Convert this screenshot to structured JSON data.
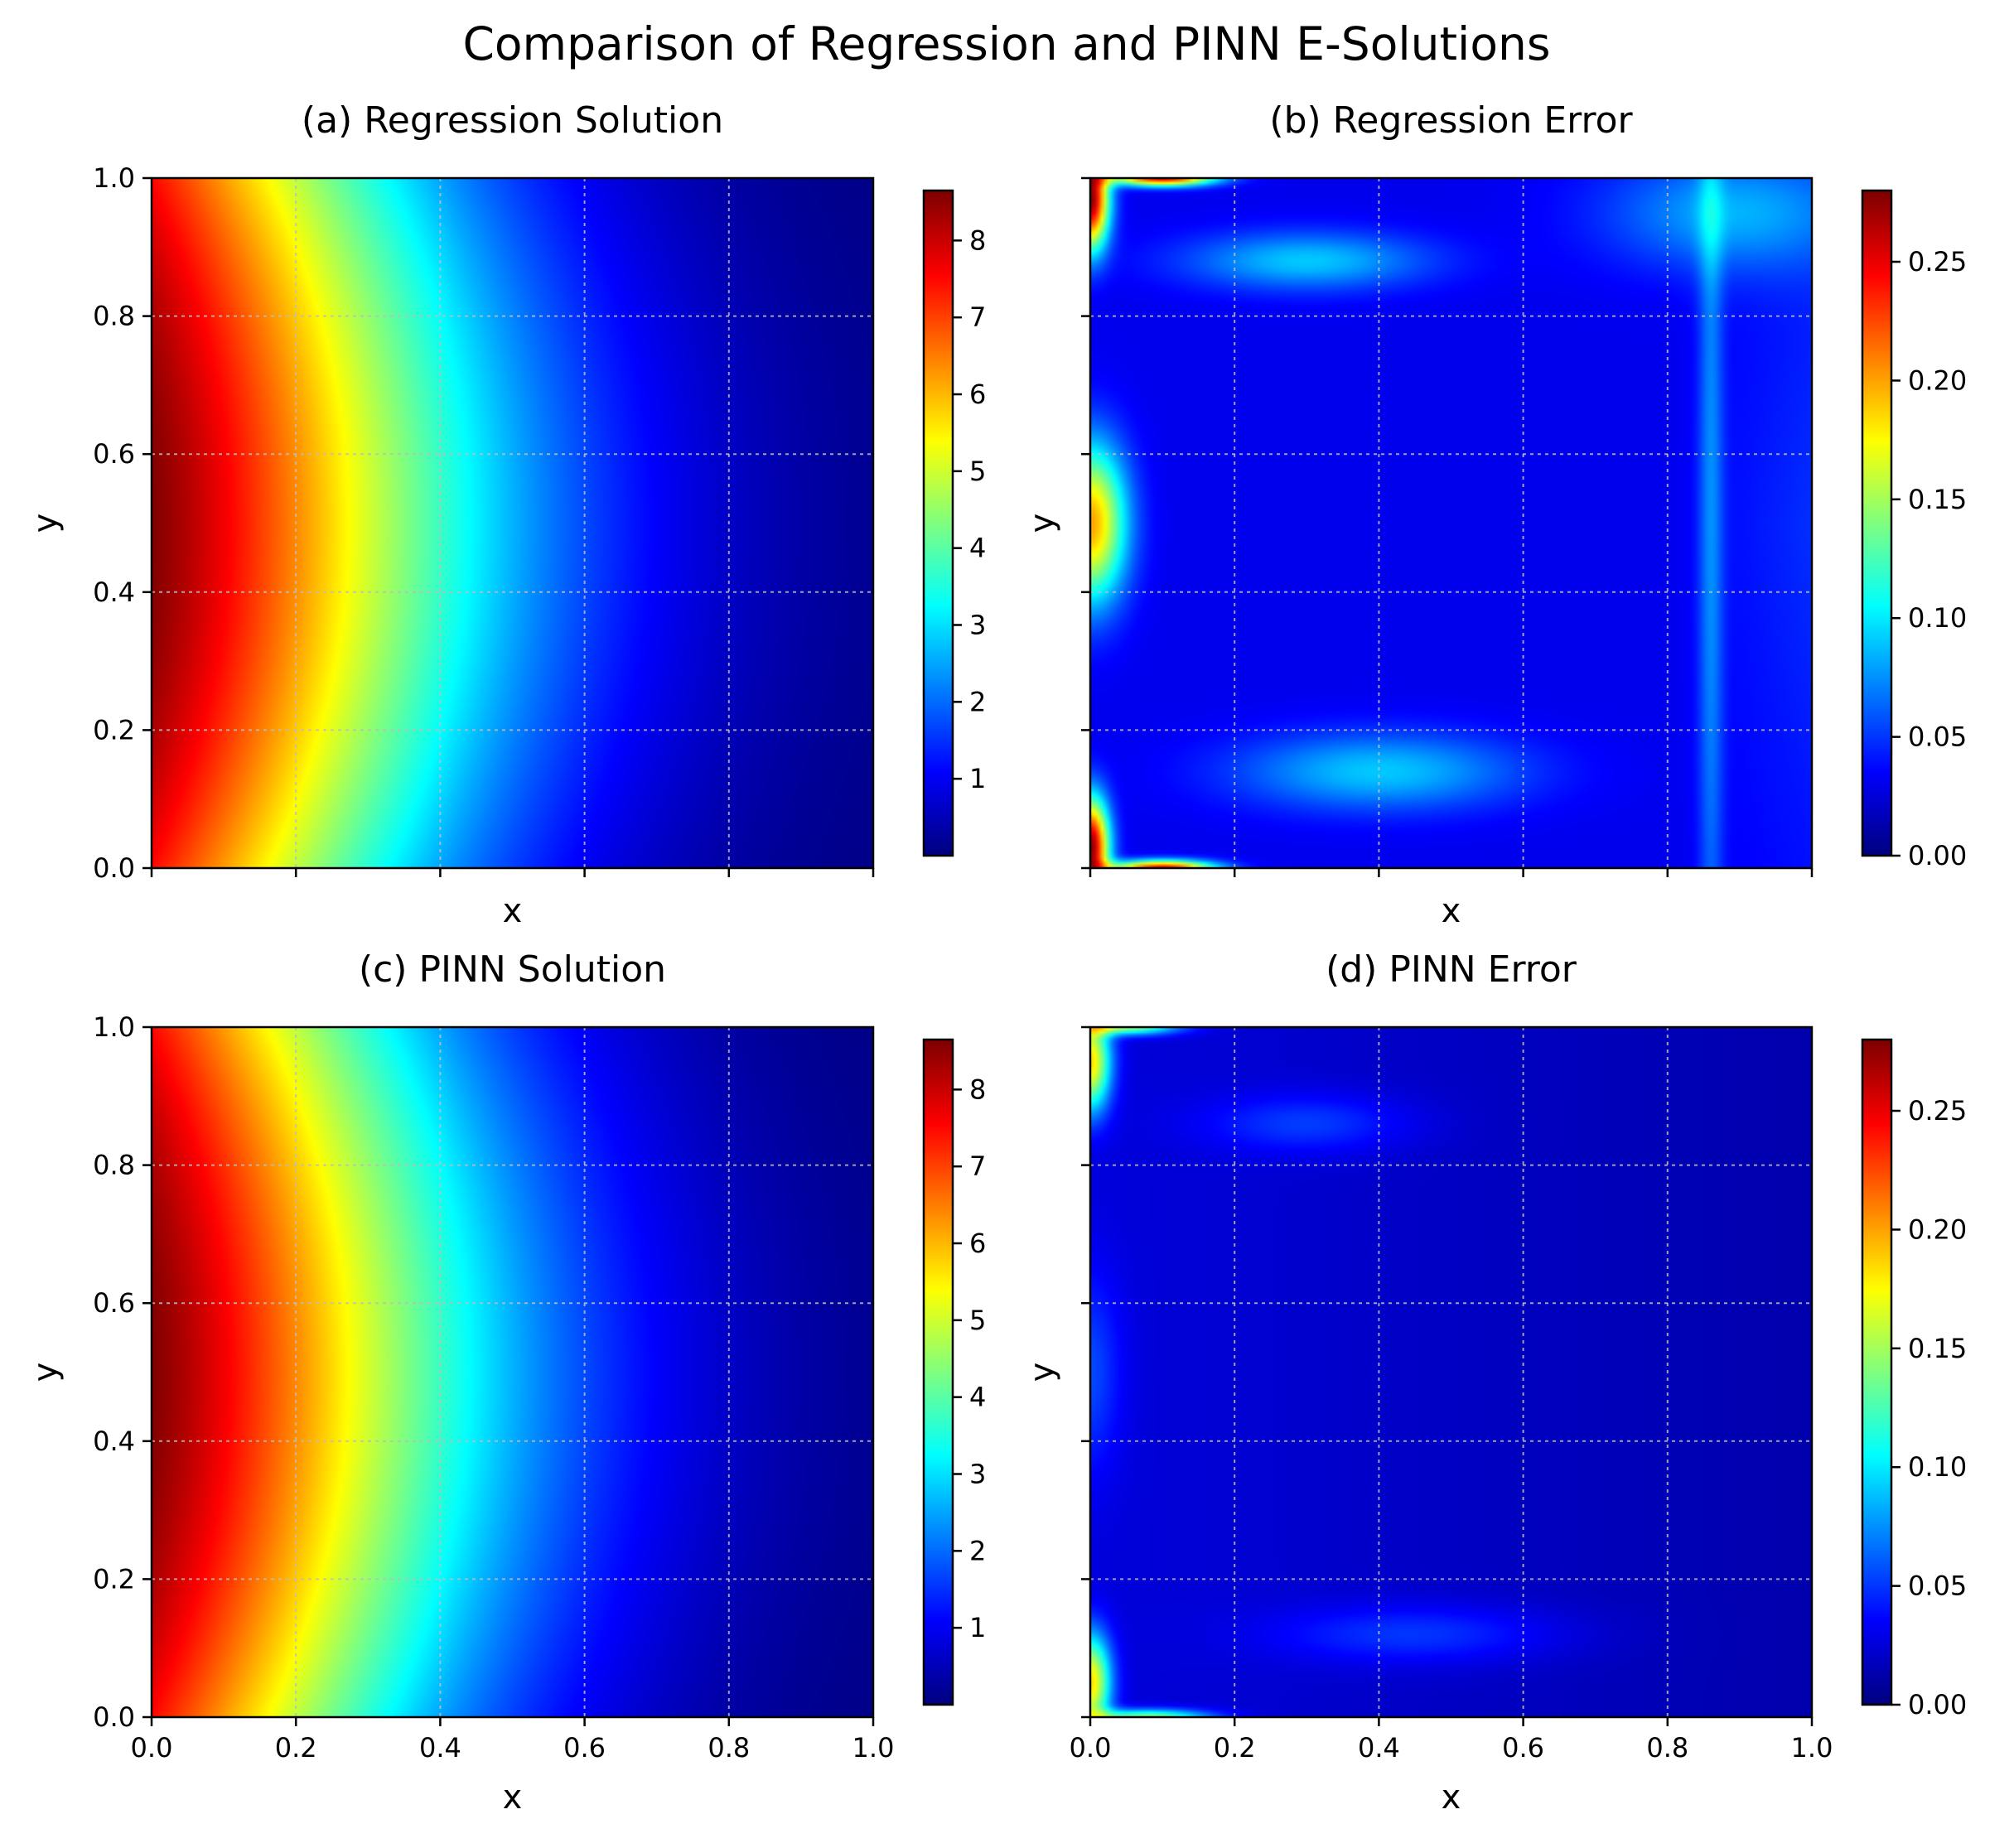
{
  "figure": {
    "title": "Comparison of Regression and PINN E-Solutions"
  },
  "colormap": {
    "name": "jet",
    "stops": [
      "#00007f",
      "#0000ff",
      "#007fff",
      "#00ffff",
      "#7fff7f",
      "#ffff00",
      "#ff7f00",
      "#ff0000",
      "#7f0000"
    ]
  },
  "chart_data": [
    {
      "type": "heatmap",
      "panel": "a",
      "title": "(a) Regression Solution",
      "xlabel": "x",
      "ylabel": "y",
      "xlim": [
        0.0,
        1.0
      ],
      "ylim": [
        0.0,
        1.0
      ],
      "xticks": [
        0.0,
        0.2,
        0.4,
        0.6,
        0.8,
        1.0
      ],
      "yticks": [
        0.0,
        0.2,
        0.4,
        0.6,
        0.8,
        1.0
      ],
      "xtick_labels_visible": false,
      "ytick_labels_visible": true,
      "xtick_labels": [
        "0.0",
        "0.2",
        "0.4",
        "0.6",
        "0.8",
        "1.0"
      ],
      "ytick_labels": [
        "0.0",
        "0.2",
        "0.4",
        "0.6",
        "0.8",
        "1.0"
      ],
      "grid": true,
      "field": "solution",
      "colorbar": {
        "min": 0.0,
        "max": 8.65,
        "ticks": [
          1,
          2,
          3,
          4,
          5,
          6,
          7,
          8
        ],
        "tick_labels": [
          "1",
          "2",
          "3",
          "4",
          "5",
          "6",
          "7",
          "8"
        ]
      }
    },
    {
      "type": "heatmap",
      "panel": "b",
      "title": "(b) Regression Error",
      "xlabel": "x",
      "ylabel": "y",
      "xlim": [
        0.0,
        1.0
      ],
      "ylim": [
        0.0,
        1.0
      ],
      "xticks": [
        0.0,
        0.2,
        0.4,
        0.6,
        0.8,
        1.0
      ],
      "yticks": [
        0.0,
        0.2,
        0.4,
        0.6,
        0.8,
        1.0
      ],
      "xtick_labels_visible": false,
      "ytick_labels_visible": false,
      "xtick_labels": [
        "0.0",
        "0.2",
        "0.4",
        "0.6",
        "0.8",
        "1.0"
      ],
      "ytick_labels": [
        "0.0",
        "0.2",
        "0.4",
        "0.6",
        "0.8",
        "1.0"
      ],
      "grid": true,
      "field": "error_regression",
      "colorbar": {
        "min": 0.0,
        "max": 0.28,
        "ticks": [
          0.0,
          0.05,
          0.1,
          0.15,
          0.2,
          0.25
        ],
        "tick_labels": [
          "0.00",
          "0.05",
          "0.10",
          "0.15",
          "0.20",
          "0.25"
        ]
      }
    },
    {
      "type": "heatmap",
      "panel": "c",
      "title": "(c) PINN Solution",
      "xlabel": "x",
      "ylabel": "y",
      "xlim": [
        0.0,
        1.0
      ],
      "ylim": [
        0.0,
        1.0
      ],
      "xticks": [
        0.0,
        0.2,
        0.4,
        0.6,
        0.8,
        1.0
      ],
      "yticks": [
        0.0,
        0.2,
        0.4,
        0.6,
        0.8,
        1.0
      ],
      "xtick_labels_visible": true,
      "ytick_labels_visible": true,
      "xtick_labels": [
        "0.0",
        "0.2",
        "0.4",
        "0.6",
        "0.8",
        "1.0"
      ],
      "ytick_labels": [
        "0.0",
        "0.2",
        "0.4",
        "0.6",
        "0.8",
        "1.0"
      ],
      "grid": true,
      "field": "solution",
      "colorbar": {
        "min": 0.0,
        "max": 8.65,
        "ticks": [
          1,
          2,
          3,
          4,
          5,
          6,
          7,
          8
        ],
        "tick_labels": [
          "1",
          "2",
          "3",
          "4",
          "5",
          "6",
          "7",
          "8"
        ]
      }
    },
    {
      "type": "heatmap",
      "panel": "d",
      "title": "(d) PINN Error",
      "xlabel": "x",
      "ylabel": "y",
      "xlim": [
        0.0,
        1.0
      ],
      "ylim": [
        0.0,
        1.0
      ],
      "xticks": [
        0.0,
        0.2,
        0.4,
        0.6,
        0.8,
        1.0
      ],
      "yticks": [
        0.0,
        0.2,
        0.4,
        0.6,
        0.8,
        1.0
      ],
      "xtick_labels_visible": true,
      "ytick_labels_visible": false,
      "xtick_labels": [
        "0.0",
        "0.2",
        "0.4",
        "0.6",
        "0.8",
        "1.0"
      ],
      "ytick_labels": [
        "0.0",
        "0.2",
        "0.4",
        "0.6",
        "0.8",
        "1.0"
      ],
      "grid": true,
      "field": "error_pinn",
      "colorbar": {
        "min": 0.0,
        "max": 0.28,
        "ticks": [
          0.0,
          0.05,
          0.1,
          0.15,
          0.2,
          0.25
        ],
        "tick_labels": [
          "0.00",
          "0.05",
          "0.10",
          "0.15",
          "0.20",
          "0.25"
        ]
      }
    }
  ]
}
